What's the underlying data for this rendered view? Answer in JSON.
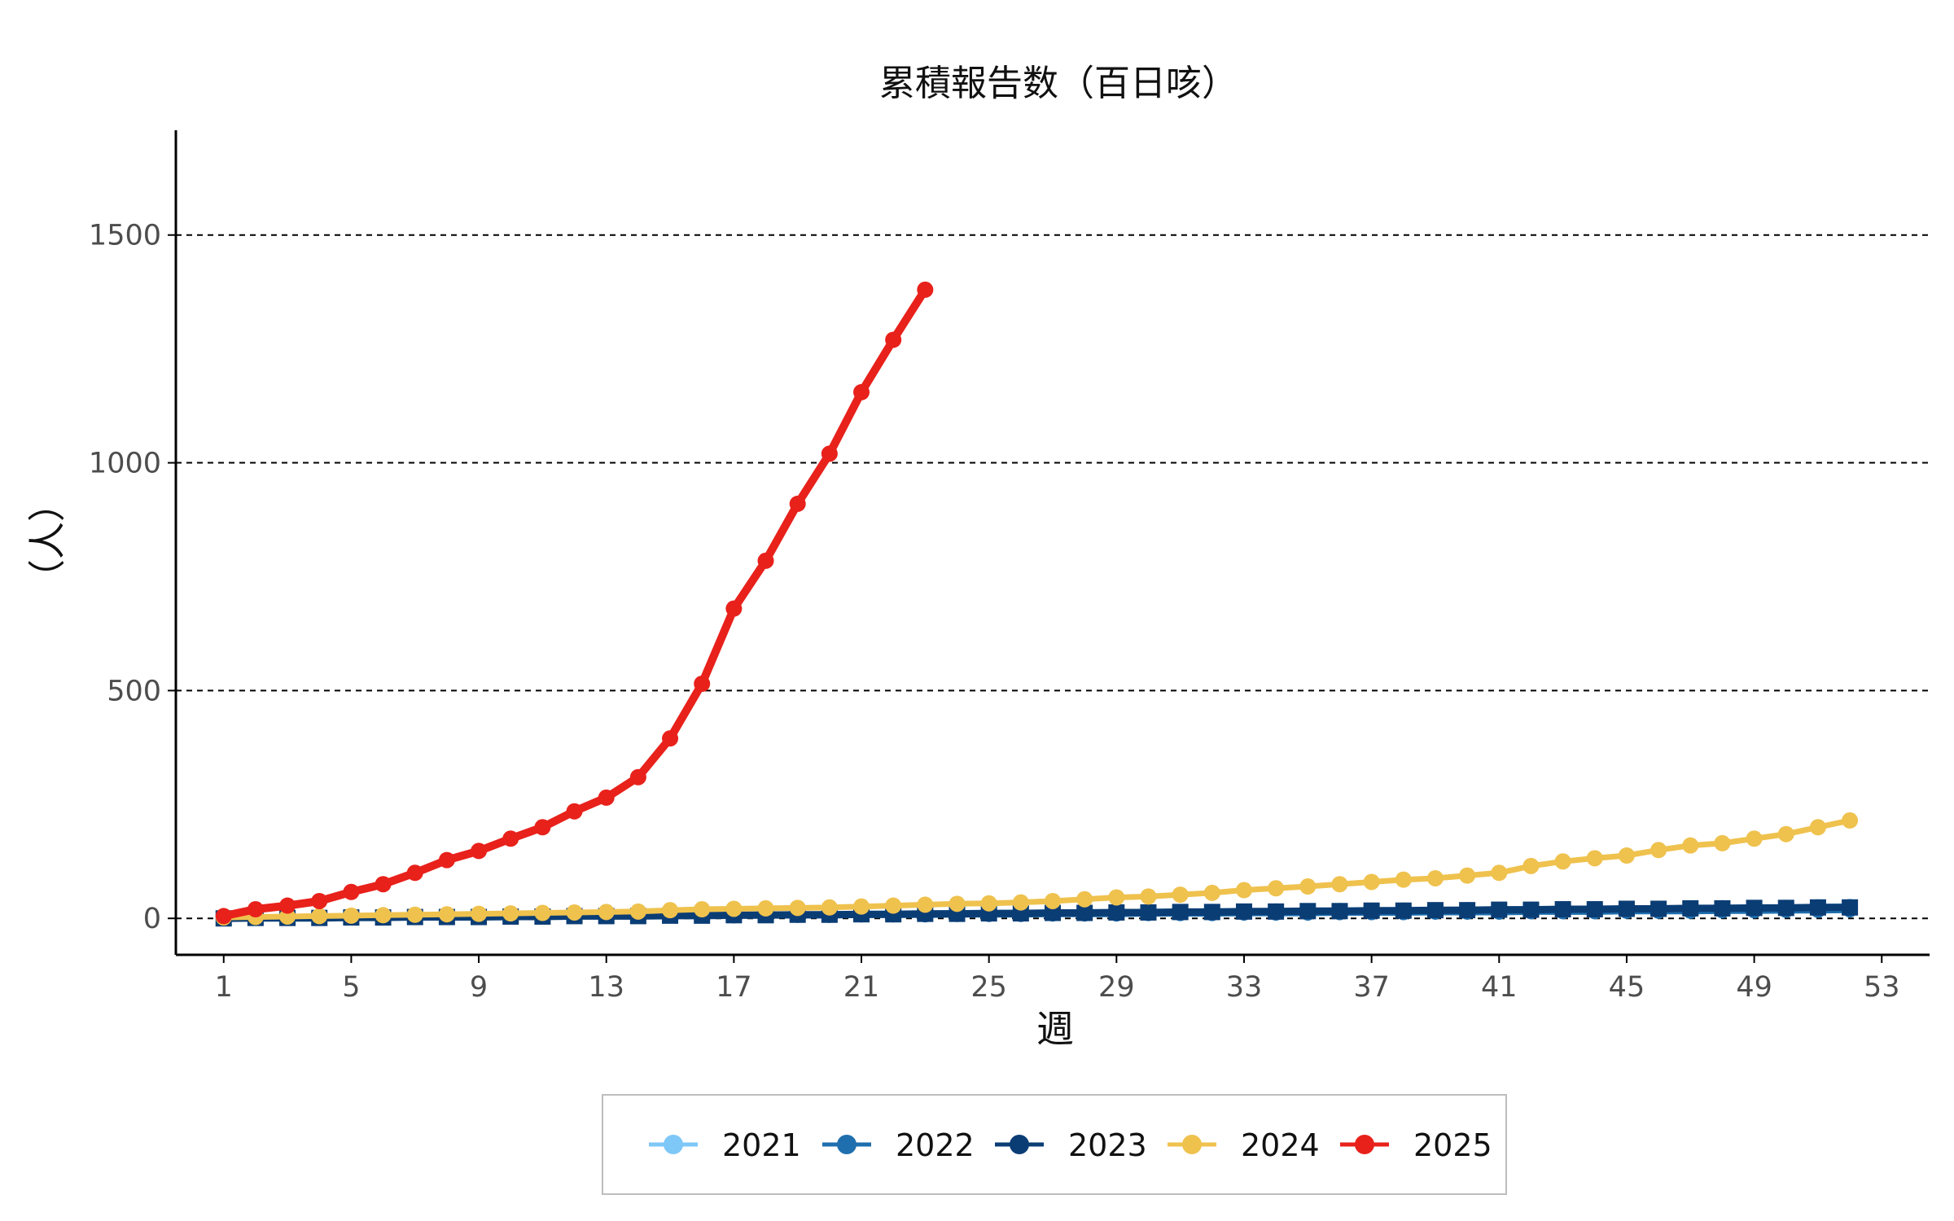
{
  "chart_data": {
    "type": "line",
    "title": "累積報告数（百日咳）",
    "xlabel": "週",
    "ylabel": "（人）",
    "xlim": [
      -0.5,
      54.5
    ],
    "ylim": [
      -80,
      1730
    ],
    "x_ticks": [
      1,
      5,
      9,
      13,
      17,
      21,
      25,
      29,
      33,
      37,
      41,
      45,
      49,
      53
    ],
    "y_ticks": [
      0,
      500,
      1000,
      1500
    ],
    "grid": "horizontal dashed",
    "legend_position": "bottom",
    "series": [
      {
        "name": "2021",
        "color": "#7EC8F8",
        "x": [
          1,
          2,
          3,
          4,
          5,
          6,
          7,
          8,
          9,
          10,
          11,
          12,
          13,
          14,
          15,
          16,
          17,
          18,
          19,
          20,
          21,
          22,
          23,
          24,
          25,
          26,
          27,
          28,
          29,
          30,
          31,
          32,
          33,
          34,
          35,
          36,
          37,
          38,
          39,
          40,
          41,
          42,
          43,
          44,
          45,
          46,
          47,
          48,
          49,
          50,
          51,
          52
        ],
        "values": [
          0,
          1,
          1,
          2,
          2,
          3,
          3,
          4,
          4,
          5,
          5,
          6,
          6,
          7,
          7,
          8,
          8,
          9,
          9,
          10,
          10,
          11,
          11,
          12,
          12,
          13,
          13,
          14,
          14,
          15,
          15,
          16,
          16,
          17,
          17,
          18,
          18,
          19,
          19,
          20,
          20,
          21,
          21,
          22,
          22,
          23,
          23,
          24,
          24,
          25,
          26,
          27
        ]
      },
      {
        "name": "2022",
        "color": "#1F6FAE",
        "x": [
          1,
          2,
          3,
          4,
          5,
          6,
          7,
          8,
          9,
          10,
          11,
          12,
          13,
          14,
          15,
          16,
          17,
          18,
          19,
          20,
          21,
          22,
          23,
          24,
          25,
          26,
          27,
          28,
          29,
          30,
          31,
          32,
          33,
          34,
          35,
          36,
          37,
          38,
          39,
          40,
          41,
          42,
          43,
          44,
          45,
          46,
          47,
          48,
          49,
          50,
          51,
          52
        ],
        "values": [
          0,
          0,
          1,
          1,
          1,
          2,
          2,
          2,
          3,
          3,
          3,
          4,
          4,
          4,
          5,
          5,
          5,
          6,
          6,
          6,
          7,
          7,
          7,
          8,
          8,
          8,
          9,
          9,
          9,
          10,
          10,
          10,
          11,
          11,
          11,
          12,
          12,
          12,
          13,
          13,
          13,
          14,
          14,
          14,
          15,
          15,
          15,
          16,
          16,
          17,
          17,
          18
        ]
      },
      {
        "name": "2023",
        "color": "#0B3D75",
        "x": [
          1,
          2,
          3,
          4,
          5,
          6,
          7,
          8,
          9,
          10,
          11,
          12,
          13,
          14,
          15,
          16,
          17,
          18,
          19,
          20,
          21,
          22,
          23,
          24,
          25,
          26,
          27,
          28,
          29,
          30,
          31,
          32,
          33,
          34,
          35,
          36,
          37,
          38,
          39,
          40,
          41,
          42,
          43,
          44,
          45,
          46,
          47,
          48,
          49,
          50,
          51,
          52
        ],
        "values": [
          0,
          1,
          1,
          1,
          2,
          2,
          3,
          3,
          3,
          4,
          4,
          5,
          5,
          5,
          6,
          6,
          7,
          7,
          8,
          8,
          9,
          9,
          10,
          10,
          11,
          11,
          12,
          12,
          13,
          13,
          14,
          14,
          15,
          15,
          16,
          16,
          17,
          17,
          18,
          18,
          19,
          19,
          20,
          20,
          21,
          21,
          22,
          22,
          23,
          23,
          24,
          24
        ]
      },
      {
        "name": "2024",
        "color": "#EFC24E",
        "x": [
          1,
          2,
          3,
          4,
          5,
          6,
          7,
          8,
          9,
          10,
          11,
          12,
          13,
          14,
          15,
          16,
          17,
          18,
          19,
          20,
          21,
          22,
          23,
          24,
          25,
          26,
          27,
          28,
          29,
          30,
          31,
          32,
          33,
          34,
          35,
          36,
          37,
          38,
          39,
          40,
          41,
          42,
          43,
          44,
          45,
          46,
          47,
          48,
          49,
          50,
          51,
          52
        ],
        "values": [
          2,
          3,
          4,
          5,
          6,
          7,
          8,
          9,
          10,
          11,
          12,
          13,
          14,
          15,
          18,
          20,
          21,
          22,
          23,
          24,
          26,
          28,
          30,
          32,
          33,
          35,
          38,
          42,
          46,
          48,
          52,
          56,
          62,
          66,
          70,
          75,
          80,
          85,
          88,
          94,
          100,
          115,
          125,
          132,
          138,
          150,
          160,
          165,
          175,
          185,
          200,
          215
        ]
      },
      {
        "name": "2025",
        "color": "#E8211B",
        "x": [
          1,
          2,
          3,
          4,
          5,
          6,
          7,
          8,
          9,
          10,
          11,
          12,
          13,
          14,
          15,
          16,
          17,
          18,
          19,
          20,
          21,
          22,
          23
        ],
        "values": [
          5,
          20,
          28,
          38,
          58,
          75,
          100,
          128,
          148,
          175,
          200,
          235,
          265,
          310,
          395,
          515,
          680,
          785,
          910,
          1020,
          1155,
          1270,
          1380
        ]
      }
    ]
  }
}
